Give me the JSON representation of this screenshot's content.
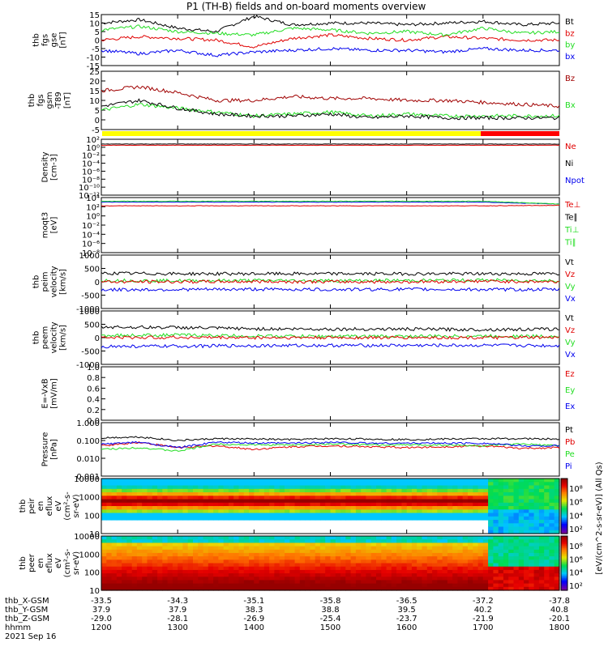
{
  "title": "P1 (TH-B) fields and on-board moments overview",
  "date_label": "2021 Sep 16",
  "colors": {
    "black": "#000000",
    "red": "#e00000",
    "green": "#22dd22",
    "blue": "#0000ee",
    "darkred": "#a00000"
  },
  "colorbar_label": "[eV/(cm^2-s-sr-eV)] (All Qs)",
  "colorbar_ticks": [
    "10⁸",
    "10⁶",
    "10⁴",
    "10²"
  ],
  "footer": {
    "rows": [
      {
        "label": "thb_X-GSM",
        "values": [
          "-33.5",
          "-34.3",
          "-35.1",
          "-35.8",
          "-36.5",
          "-37.2",
          "-37.8"
        ]
      },
      {
        "label": "thb_Y-GSM",
        "values": [
          "37.9",
          "37.9",
          "38.3",
          "38.8",
          "39.5",
          "40.2",
          "40.8"
        ]
      },
      {
        "label": "thb_Z-GSM",
        "values": [
          "-29.0",
          "-28.1",
          "-26.9",
          "-25.4",
          "-23.7",
          "-21.9",
          "-20.1"
        ]
      },
      {
        "label": "hhmm",
        "values": [
          "1200",
          "1300",
          "1400",
          "1500",
          "1600",
          "1700",
          "1800"
        ]
      }
    ]
  },
  "chart_data": [
    {
      "type": "line",
      "id": "fgs_gse",
      "ylabel_lines": [
        "thb",
        "fgs",
        "gse",
        "[nT]"
      ],
      "yticks": [
        "15",
        "10",
        "5",
        "0",
        "-5",
        "-10",
        "-15"
      ],
      "ylim": [
        -15,
        15
      ],
      "legend": [
        {
          "name": "Bt",
          "color": "#000000"
        },
        {
          "name": "bz",
          "color": "#e00000"
        },
        {
          "name": "by",
          "color": "#22dd22"
        },
        {
          "name": "bx",
          "color": "#0000ee"
        }
      ],
      "x": [
        "1200",
        "1230",
        "1300",
        "1330",
        "1400",
        "1430",
        "1500",
        "1530",
        "1600",
        "1630",
        "1700",
        "1730",
        "1800"
      ],
      "series": [
        {
          "name": "Bt",
          "color": "#000000",
          "values": [
            10,
            12,
            7,
            5,
            14,
            9,
            10,
            10,
            9,
            10,
            11,
            9,
            10
          ]
        },
        {
          "name": "bz",
          "color": "#e00000",
          "values": [
            0,
            2,
            1,
            0,
            -4,
            1,
            3,
            1,
            0,
            2,
            1,
            0,
            0
          ]
        },
        {
          "name": "by",
          "color": "#22dd22",
          "values": [
            6,
            8,
            5,
            4,
            3,
            7,
            6,
            4,
            5,
            3,
            7,
            4,
            5
          ]
        },
        {
          "name": "bx",
          "color": "#0000ee",
          "values": [
            -6,
            -8,
            -6,
            -9,
            -7,
            -6,
            -5,
            -6,
            -6,
            -7,
            -5,
            -6,
            -6
          ]
        }
      ]
    },
    {
      "type": "line",
      "id": "fgs_gsm",
      "ylabel_lines": [
        "thb",
        "fgs",
        "gsm",
        "-T89",
        "[nT]"
      ],
      "yticks": [
        "25",
        "20",
        "15",
        "10",
        "5",
        "0",
        "-5"
      ],
      "ylim": [
        -5,
        25
      ],
      "legend": [
        {
          "name": "Bz",
          "color": "#a00000"
        },
        {
          "name": "Bx",
          "color": "#22dd22"
        }
      ],
      "x": [
        "1200",
        "1230",
        "1300",
        "1330",
        "1400",
        "1430",
        "1500",
        "1530",
        "1600",
        "1630",
        "1700",
        "1730",
        "1800"
      ],
      "series": [
        {
          "name": "Bz",
          "color": "#a00000",
          "values": [
            15,
            17,
            14,
            10,
            10,
            12,
            11,
            11,
            10,
            10,
            9,
            8,
            7
          ]
        },
        {
          "name": "Bx",
          "color": "#22dd22",
          "values": [
            5,
            8,
            6,
            4,
            2,
            3,
            4,
            2,
            3,
            2,
            2,
            2,
            2
          ]
        },
        {
          "name": "Bt",
          "color": "#000000",
          "values": [
            7,
            10,
            6,
            3,
            2,
            2,
            3,
            1,
            2,
            1,
            1,
            1,
            1
          ]
        }
      ]
    },
    {
      "type": "line",
      "id": "density",
      "log": true,
      "ylabel_lines": [
        "Density",
        "[cm-3]"
      ],
      "yticks": [
        "10²",
        "10⁰",
        "10⁻²",
        "10⁻⁴",
        "10⁻⁶",
        "10⁻⁸",
        "10⁻¹⁰",
        "10⁻¹²"
      ],
      "ylim_exp": [
        -12,
        2
      ],
      "legend": [
        {
          "name": "Ne",
          "color": "#e00000"
        },
        {
          "name": "Ni",
          "color": "#000000"
        },
        {
          "name": "Npot",
          "color": "#0000ee"
        }
      ],
      "x": [
        "1200",
        "1300",
        "1400",
        "1500",
        "1600",
        "1700",
        "1800"
      ],
      "series": [
        {
          "name": "Ne",
          "color": "#e00000",
          "values_exp": [
            0.5,
            0.5,
            0.5,
            0.5,
            0.5,
            0.5,
            0.5
          ]
        },
        {
          "name": "Ni",
          "color": "#000000",
          "values_exp": [
            0.8,
            0.8,
            0.8,
            0.8,
            0.8,
            0.8,
            0.8
          ]
        }
      ]
    },
    {
      "type": "line",
      "id": "temperature",
      "log": true,
      "ylabel_lines": [
        "moqt3",
        "[eV]"
      ],
      "yticks": [
        "10⁴",
        "10²",
        "10⁰",
        "10⁻²",
        "10⁻⁴",
        "10⁻⁶",
        "10⁻⁸"
      ],
      "ylim_exp": [
        -8,
        4
      ],
      "legend": [
        {
          "name": "Te⊥",
          "color": "#e00000"
        },
        {
          "name": "Te∥",
          "color": "#000000"
        },
        {
          "name": "Ti⊥",
          "color": "#22dd22"
        },
        {
          "name": "Ti∥",
          "color": "#22dd22"
        }
      ],
      "x": [
        "1200",
        "1300",
        "1400",
        "1500",
        "1600",
        "1700",
        "1800"
      ],
      "series": [
        {
          "name": "Ti",
          "color": "#0000ee",
          "values_exp": [
            3.0,
            3.0,
            3.0,
            3.0,
            3.0,
            3.0,
            2.6
          ]
        },
        {
          "name": "Ti",
          "color": "#22dd22",
          "values_exp": [
            3.2,
            3.2,
            3.2,
            3.2,
            3.2,
            3.2,
            2.6
          ]
        },
        {
          "name": "Te",
          "color": "#e00000",
          "values_exp": [
            2.2,
            2.2,
            2.2,
            2.2,
            2.2,
            2.2,
            2.3
          ]
        }
      ]
    },
    {
      "type": "line",
      "id": "peim_velocity",
      "ylabel_lines": [
        "thb",
        "peim",
        "velocity",
        "[km/s]"
      ],
      "yticks": [
        "1000",
        "500",
        "0",
        "-500",
        "-1000"
      ],
      "ylim": [
        -1000,
        1000
      ],
      "legend": [
        {
          "name": "Vt",
          "color": "#000000"
        },
        {
          "name": "Vz",
          "color": "#e00000"
        },
        {
          "name": "Vy",
          "color": "#22dd22"
        },
        {
          "name": "Vx",
          "color": "#0000ee"
        }
      ],
      "x": [
        "1200",
        "1300",
        "1400",
        "1500",
        "1600",
        "1700",
        "1800"
      ],
      "series": [
        {
          "name": "Vt",
          "color": "#000000",
          "values": [
            320,
            300,
            300,
            300,
            300,
            300,
            300
          ]
        },
        {
          "name": "Vy",
          "color": "#22dd22",
          "values": [
            50,
            40,
            50,
            40,
            50,
            60,
            40
          ]
        },
        {
          "name": "Vz",
          "color": "#e00000",
          "values": [
            0,
            0,
            10,
            0,
            0,
            20,
            0
          ]
        },
        {
          "name": "Vx",
          "color": "#0000ee",
          "values": [
            -300,
            -290,
            -280,
            -290,
            -280,
            -290,
            -290
          ]
        }
      ]
    },
    {
      "type": "line",
      "id": "peem_velocity",
      "ylabel_lines": [
        "thb",
        "peem",
        "velocity",
        "[km/s]"
      ],
      "yticks": [
        "1000",
        "500",
        "0",
        "-500",
        "-1000"
      ],
      "ylim": [
        -1000,
        1000
      ],
      "legend": [
        {
          "name": "Vt",
          "color": "#000000"
        },
        {
          "name": "Vz",
          "color": "#e00000"
        },
        {
          "name": "Vy",
          "color": "#22dd22"
        },
        {
          "name": "Vx",
          "color": "#0000ee"
        }
      ],
      "x": [
        "1200",
        "1300",
        "1400",
        "1500",
        "1600",
        "1700",
        "1800"
      ],
      "series": [
        {
          "name": "Vt",
          "color": "#000000",
          "values": [
            400,
            380,
            330,
            320,
            320,
            300,
            320
          ]
        },
        {
          "name": "Vy",
          "color": "#22dd22",
          "values": [
            80,
            100,
            60,
            50,
            50,
            60,
            50
          ]
        },
        {
          "name": "Vz",
          "color": "#e00000",
          "values": [
            0,
            10,
            0,
            0,
            0,
            0,
            0
          ]
        },
        {
          "name": "Vx",
          "color": "#0000ee",
          "values": [
            -330,
            -320,
            -300,
            -290,
            -290,
            -290,
            -300
          ]
        }
      ]
    },
    {
      "type": "line",
      "id": "efield",
      "ylabel_lines": [
        "E=-VxB",
        "[mV/m]"
      ],
      "yticks": [
        "1.0",
        "0.8",
        "0.6",
        "0.4",
        "0.2",
        "0.0"
      ],
      "ylim": [
        0,
        1
      ],
      "legend": [
        {
          "name": "Ez",
          "color": "#e00000"
        },
        {
          "name": "Ey",
          "color": "#22dd22"
        },
        {
          "name": "Ex",
          "color": "#0000ee"
        }
      ],
      "series": []
    },
    {
      "type": "line",
      "id": "pressure",
      "log": true,
      "ylabel_lines": [
        "Pressure",
        "[nPa]"
      ],
      "yticks": [
        "1.000",
        "0.100",
        "0.010",
        "0.001"
      ],
      "ylim_exp": [
        -3,
        0
      ],
      "legend": [
        {
          "name": "Pt",
          "color": "#000000"
        },
        {
          "name": "Pb",
          "color": "#e00000"
        },
        {
          "name": "Pe",
          "color": "#22dd22"
        },
        {
          "name": "Pi",
          "color": "#0000ee"
        }
      ],
      "x": [
        "1200",
        "1230",
        "1300",
        "1330",
        "1400",
        "1430",
        "1500",
        "1530",
        "1600",
        "1630",
        "1700",
        "1730",
        "1800"
      ],
      "series": [
        {
          "name": "Pt",
          "color": "#000000",
          "values_exp": [
            -0.85,
            -0.8,
            -1.0,
            -0.9,
            -0.92,
            -0.95,
            -0.9,
            -0.92,
            -0.95,
            -0.92,
            -0.9,
            -0.9,
            -0.92
          ]
        },
        {
          "name": "Pb",
          "color": "#e00000",
          "values_exp": [
            -1.3,
            -1.1,
            -1.4,
            -1.3,
            -1.5,
            -1.35,
            -1.3,
            -1.35,
            -1.4,
            -1.35,
            -1.3,
            -1.45,
            -1.4
          ]
        },
        {
          "name": "Pe",
          "color": "#22dd22",
          "values_exp": [
            -1.5,
            -1.4,
            -1.6,
            -1.2,
            -1.25,
            -1.25,
            -1.2,
            -1.25,
            -1.25,
            -1.25,
            -1.3,
            -1.2,
            -1.3
          ]
        },
        {
          "name": "Pi",
          "color": "#0000ee",
          "values_exp": [
            -1.2,
            -1.1,
            -1.4,
            -1.1,
            -1.15,
            -1.15,
            -1.1,
            -1.15,
            -1.15,
            -1.15,
            -1.15,
            -1.3,
            -1.3
          ]
        }
      ]
    },
    {
      "type": "heatmap",
      "id": "peir_spectrogram",
      "ylabel_lines": [
        "thb",
        "peir",
        "en",
        "eflux",
        "eV",
        "(cm²-s-",
        "sr-eV)"
      ],
      "yticks": [
        "10000",
        "1000",
        "100",
        "10"
      ],
      "colorbar_ticks": [
        "10⁸",
        "10⁶",
        "10⁴",
        "10²"
      ]
    },
    {
      "type": "heatmap",
      "id": "peer_spectrogram",
      "ylabel_lines": [
        "thb",
        "peer",
        "en",
        "eflux",
        "eV",
        "(cm²-s-",
        "sr-eV)"
      ],
      "yticks": [
        "10000",
        "1000",
        "100",
        "10"
      ],
      "colorbar_ticks": [
        "10⁸",
        "10⁶",
        "10⁴",
        "10²"
      ]
    }
  ]
}
